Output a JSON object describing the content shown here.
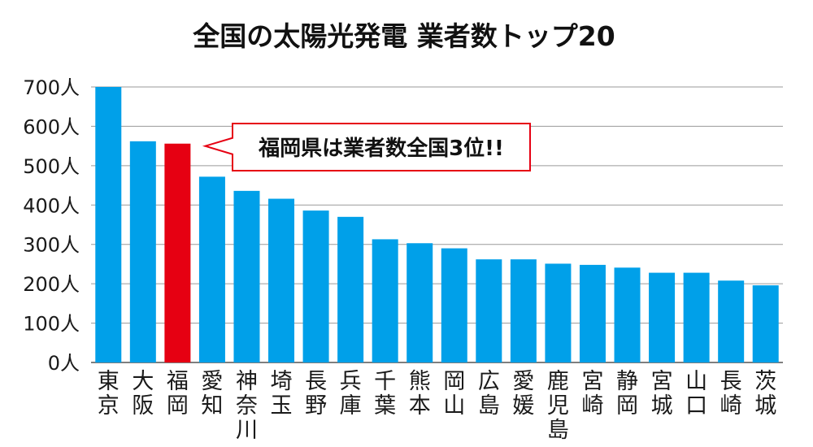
{
  "chart_data": {
    "type": "bar",
    "title": "全国の太陽光発電 業者数トップ20",
    "xlabel": "",
    "ylabel": "",
    "ylim": [
      0,
      700
    ],
    "grid": true,
    "y_ticks": [
      {
        "value": 0,
        "label": "0人"
      },
      {
        "value": 100,
        "label": "100人"
      },
      {
        "value": 200,
        "label": "200人"
      },
      {
        "value": 300,
        "label": "300人"
      },
      {
        "value": 400,
        "label": "400人"
      },
      {
        "value": 500,
        "label": "500人"
      },
      {
        "value": 600,
        "label": "600人"
      },
      {
        "value": 700,
        "label": "700人"
      }
    ],
    "categories": [
      "東京",
      "大阪",
      "福岡",
      "愛知",
      "神奈川",
      "埼玉",
      "長野",
      "兵庫",
      "千葉",
      "熊本",
      "岡山",
      "広島",
      "愛媛",
      "鹿児島",
      "宮崎",
      "静岡",
      "宮城",
      "山口",
      "長崎",
      "茨城"
    ],
    "values": [
      700,
      562,
      556,
      472,
      436,
      416,
      386,
      370,
      313,
      303,
      290,
      262,
      262,
      251,
      248,
      241,
      228,
      228,
      208,
      196
    ],
    "highlight_index": 2,
    "colors": {
      "bar": "#00a0e9",
      "highlight": "#e60012",
      "grid": "#9a9a9a",
      "axis": "#555555",
      "text": "#1a1a1a",
      "callout_border": "#e60012"
    },
    "callout": {
      "text": "福岡県は業者数全国3位!!",
      "target_index": 2
    }
  }
}
